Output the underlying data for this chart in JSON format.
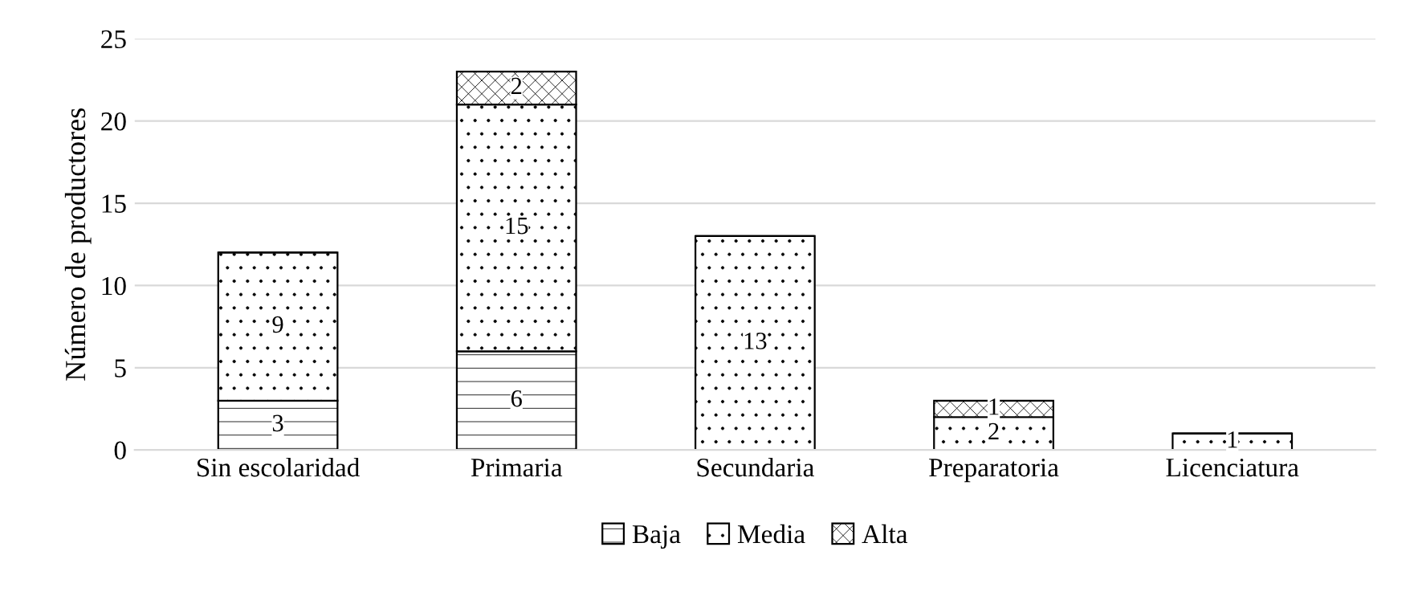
{
  "chart_data": {
    "type": "bar",
    "stacked": true,
    "ylabel": "Número de productores",
    "categories": [
      "Sin escolaridad",
      "Primaria",
      "Secundaria",
      "Preparatoria",
      "Licenciatura"
    ],
    "series": [
      {
        "name": "Baja",
        "color": "#000000",
        "values": [
          3,
          6,
          0,
          0,
          0
        ],
        "value_labels": [
          "3",
          "6",
          null,
          null,
          null
        ]
      },
      {
        "name": "Media",
        "color": "#000000",
        "values": [
          9,
          15,
          13,
          2,
          1
        ],
        "value_labels": [
          "9",
          "15",
          "13",
          "2",
          "1"
        ]
      },
      {
        "name": "Alta",
        "color": "#000000",
        "values": [
          0,
          2,
          0,
          1,
          0
        ],
        "value_labels": [
          null,
          "2",
          null,
          "1",
          null
        ]
      }
    ],
    "ylim": [
      0,
      25
    ],
    "yticks": [
      0,
      5,
      10,
      15,
      20,
      25
    ],
    "grid": "y",
    "legend": "bottom"
  }
}
